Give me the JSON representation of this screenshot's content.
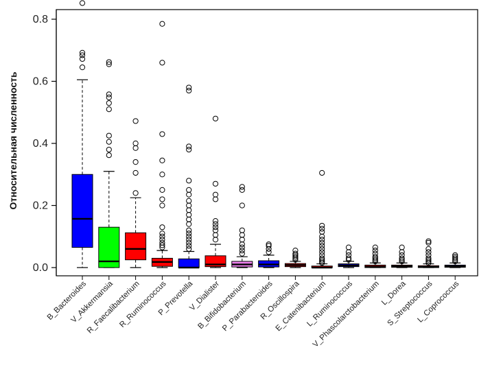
{
  "chart_data": {
    "type": "boxplot",
    "title": "",
    "xlabel": "",
    "ylabel": "Относительная численность",
    "ylim": [
      -0.02,
      0.88
    ],
    "yticks": [
      0.0,
      0.2,
      0.4,
      0.6,
      0.8
    ],
    "ytick_labels": [
      "0.0",
      "0.2",
      "0.4",
      "0.6",
      "0.8"
    ],
    "grid": false,
    "legend": "none",
    "categories": [
      "B_Bacteroides",
      "V_Akkermansia",
      "R_Faecalibacterium",
      "R_Ruminococcus",
      "P_Prevotella",
      "V_Dialister",
      "B_Bifidobacterium",
      "P_Parabacteroides",
      "R_Oscillospira",
      "E_Catenibacterium",
      "L_Ruminococcus",
      "V_Phascolarctobacterium",
      "L_Dorea",
      "S_Streptococcus",
      "L_Coprococcus"
    ],
    "colors": [
      "#0000ff",
      "#00ff00",
      "#ff0000",
      "#ff0000",
      "#0000ff",
      "#ff0000",
      "#ee82ee",
      "#0000ff",
      "#ff0000",
      "#ff0000",
      "#0000ff",
      "#8b0000",
      "#ff0000",
      "#ff0000",
      "#0000ff"
    ],
    "series": [
      {
        "min": 0.0,
        "q1": 0.065,
        "median": 0.157,
        "q3": 0.3,
        "max": 0.605,
        "outliers": [
          0.645,
          0.672,
          0.684,
          0.692,
          0.852
        ]
      },
      {
        "min": 0.0,
        "q1": 0.0,
        "median": 0.02,
        "q3": 0.13,
        "max": 0.31,
        "outliers": [
          0.362,
          0.38,
          0.405,
          0.425,
          0.51,
          0.53,
          0.548,
          0.558,
          0.655,
          0.662
        ]
      },
      {
        "min": 0.0,
        "q1": 0.025,
        "median": 0.06,
        "q3": 0.112,
        "max": 0.225,
        "outliers": [
          0.24,
          0.305,
          0.34,
          0.385,
          0.4,
          0.472
        ]
      },
      {
        "min": 0.0,
        "q1": 0.004,
        "median": 0.018,
        "q3": 0.03,
        "max": 0.055,
        "outliers": [
          0.065,
          0.072,
          0.08,
          0.09,
          0.1,
          0.11,
          0.13,
          0.2,
          0.22,
          0.25,
          0.3,
          0.345,
          0.43,
          0.66,
          0.785
        ]
      },
      {
        "min": 0.0,
        "q1": 0.0,
        "median": 0.0,
        "q3": 0.028,
        "max": 0.052,
        "outliers": [
          0.06,
          0.07,
          0.08,
          0.09,
          0.1,
          0.11,
          0.12,
          0.14,
          0.155,
          0.17,
          0.185,
          0.2,
          0.215,
          0.235,
          0.25,
          0.28,
          0.38,
          0.39,
          0.57,
          0.58
        ]
      },
      {
        "min": 0.0,
        "q1": 0.003,
        "median": 0.01,
        "q3": 0.038,
        "max": 0.075,
        "outliers": [
          0.09,
          0.105,
          0.12,
          0.13,
          0.14,
          0.15,
          0.22,
          0.235,
          0.27,
          0.48
        ]
      },
      {
        "min": 0.0,
        "q1": 0.002,
        "median": 0.01,
        "q3": 0.02,
        "max": 0.035,
        "outliers": [
          0.045,
          0.055,
          0.065,
          0.075,
          0.09,
          0.105,
          0.12,
          0.2,
          0.25,
          0.26
        ]
      },
      {
        "min": 0.0,
        "q1": 0.002,
        "median": 0.01,
        "q3": 0.022,
        "max": 0.04,
        "outliers": [
          0.05,
          0.06,
          0.07,
          0.075
        ]
      },
      {
        "min": 0.0,
        "q1": 0.003,
        "median": 0.008,
        "q3": 0.013,
        "max": 0.02,
        "outliers": [
          0.025,
          0.03,
          0.035,
          0.04,
          0.045,
          0.055
        ]
      },
      {
        "min": 0.0,
        "q1": 0.0,
        "median": 0.0,
        "q3": 0.005,
        "max": 0.012,
        "outliers": [
          0.015,
          0.02,
          0.025,
          0.03,
          0.04,
          0.05,
          0.06,
          0.07,
          0.08,
          0.09,
          0.1,
          0.115,
          0.125,
          0.135,
          0.305
        ]
      },
      {
        "min": 0.0,
        "q1": 0.003,
        "median": 0.007,
        "q3": 0.012,
        "max": 0.02,
        "outliers": [
          0.025,
          0.03,
          0.04,
          0.05,
          0.065
        ]
      },
      {
        "min": 0.0,
        "q1": 0.0,
        "median": 0.002,
        "q3": 0.008,
        "max": 0.015,
        "outliers": [
          0.02,
          0.025,
          0.03,
          0.035,
          0.045,
          0.055,
          0.065
        ]
      },
      {
        "min": 0.0,
        "q1": 0.001,
        "median": 0.004,
        "q3": 0.008,
        "max": 0.015,
        "outliers": [
          0.02,
          0.025,
          0.03,
          0.04,
          0.05,
          0.065
        ]
      },
      {
        "min": 0.0,
        "q1": 0.0,
        "median": 0.002,
        "q3": 0.006,
        "max": 0.012,
        "outliers": [
          0.015,
          0.02,
          0.025,
          0.03,
          0.04,
          0.05,
          0.06,
          0.08,
          0.085
        ]
      },
      {
        "min": 0.0,
        "q1": 0.001,
        "median": 0.004,
        "q3": 0.008,
        "max": 0.015,
        "outliers": [
          0.02,
          0.025,
          0.03,
          0.035,
          0.04
        ]
      }
    ]
  }
}
